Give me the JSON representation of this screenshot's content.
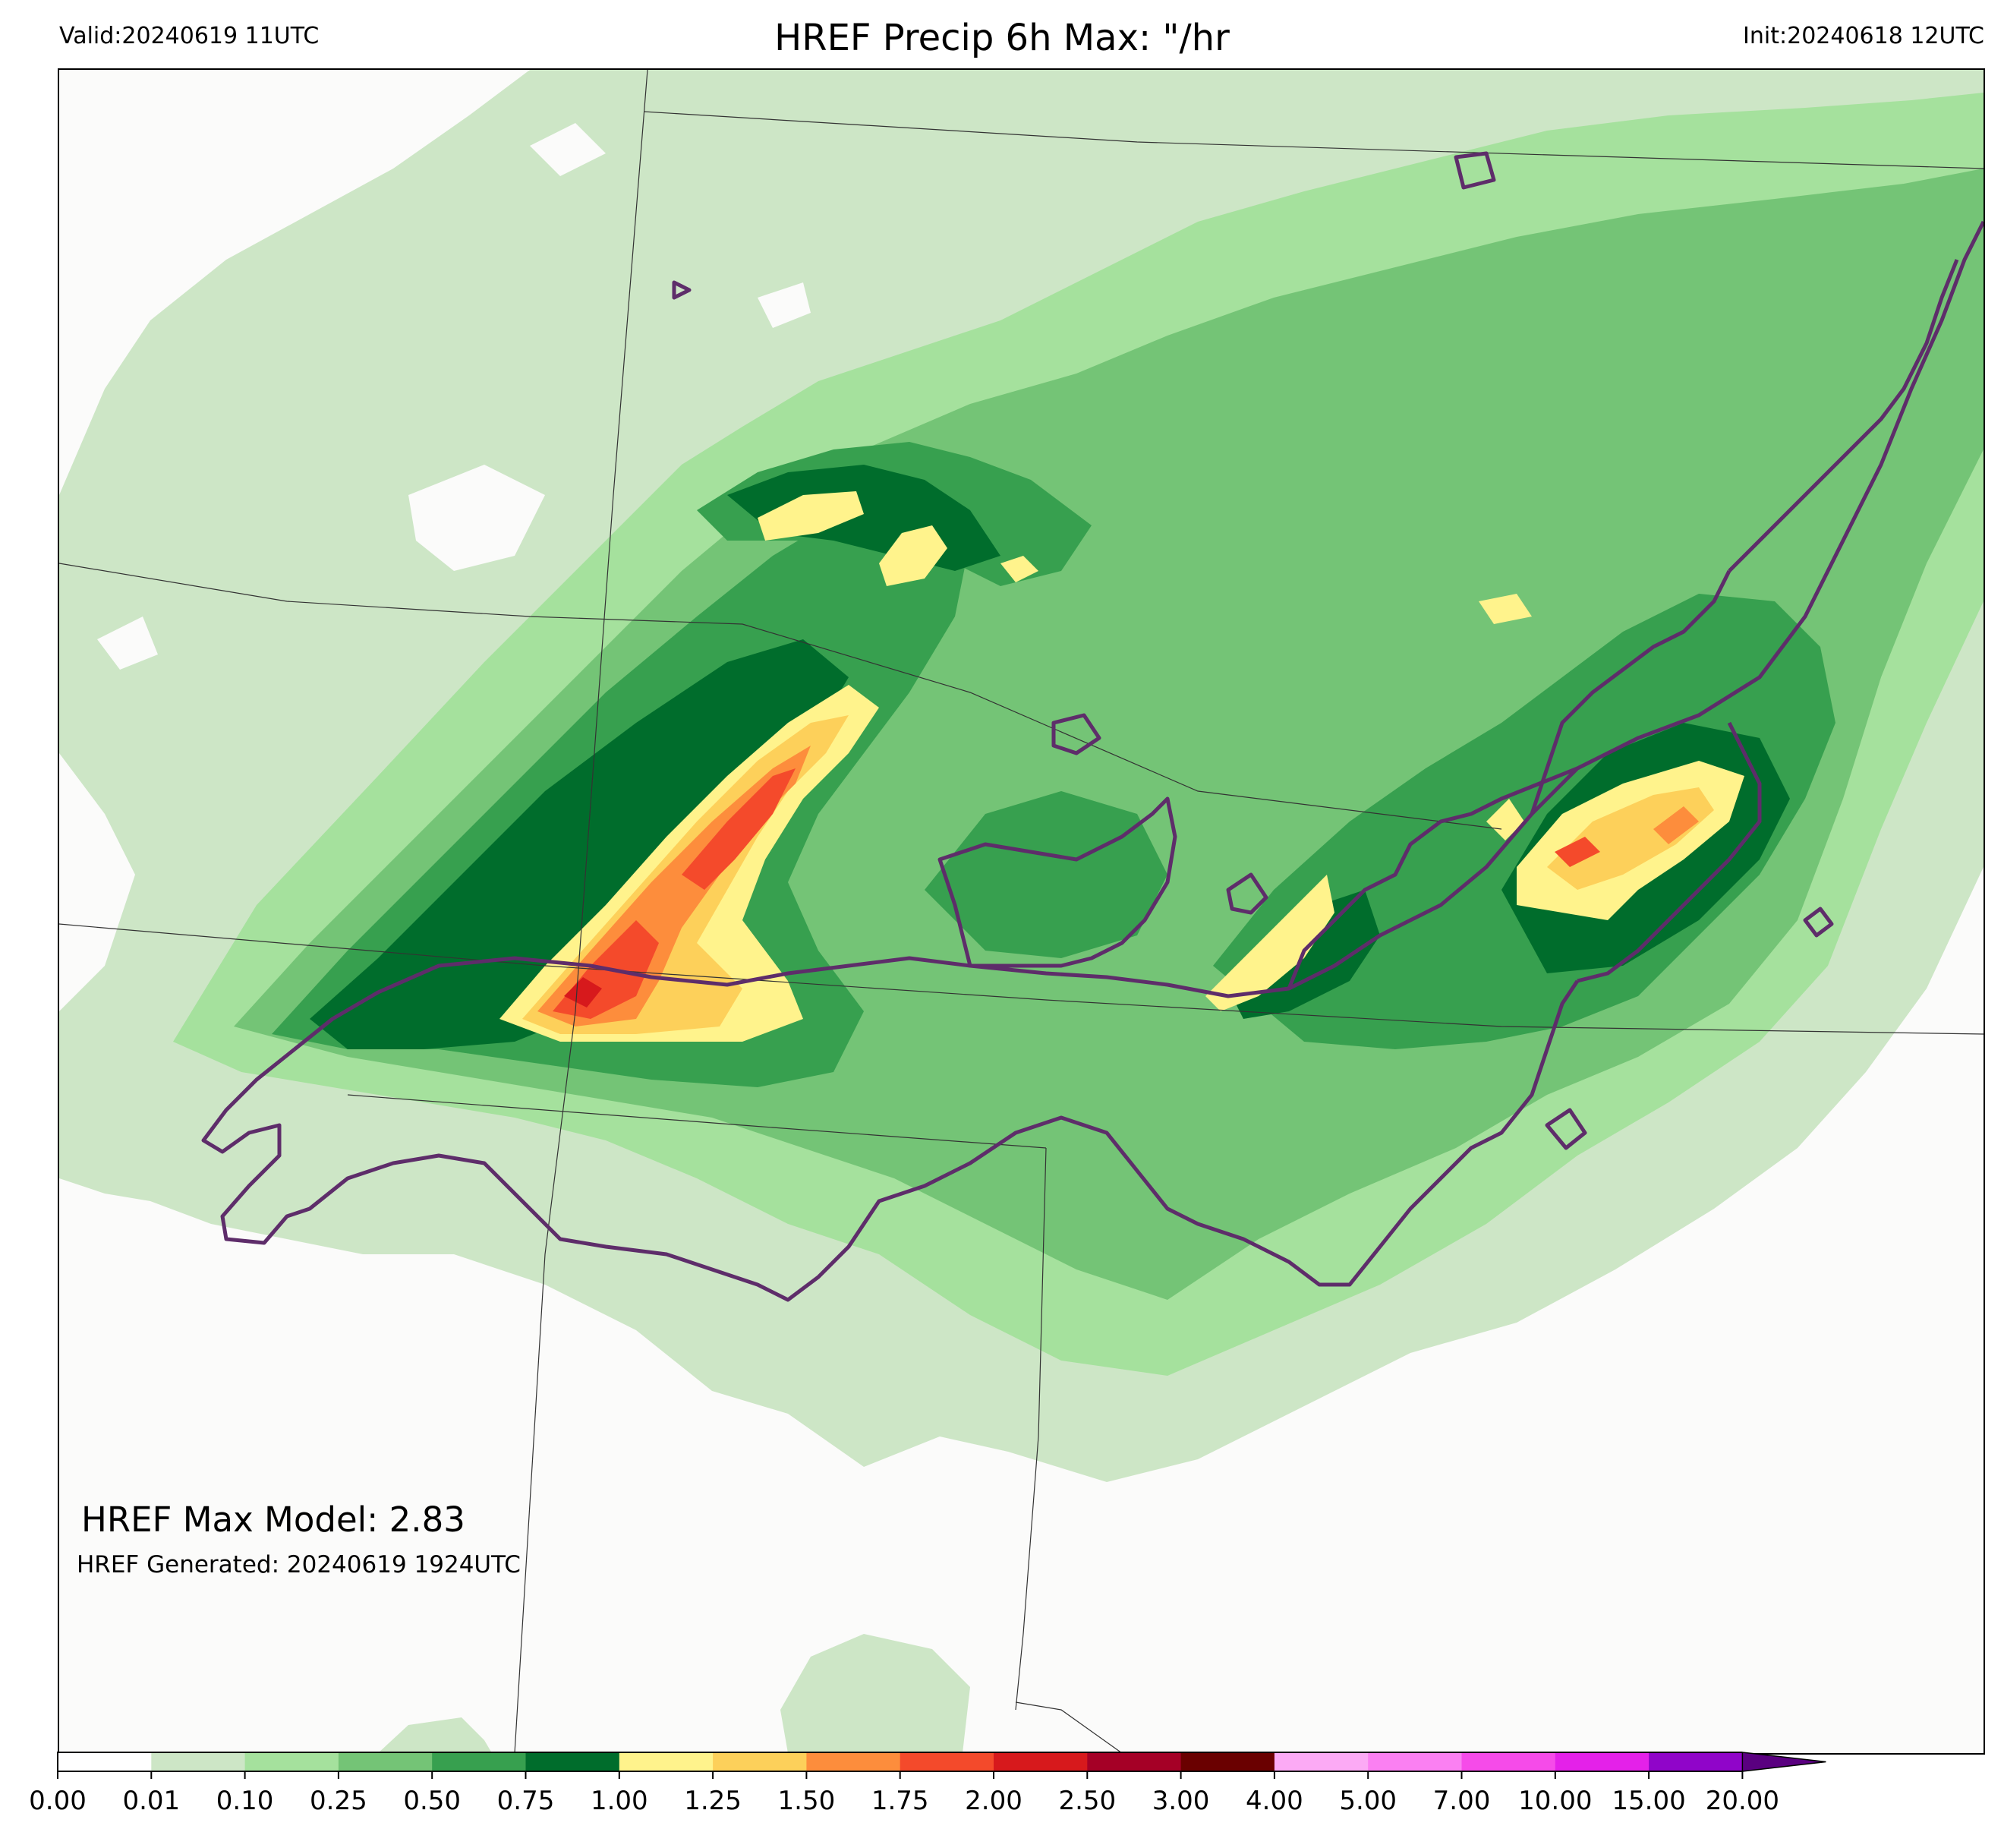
{
  "header": {
    "valid": "Valid:20240619 11UTC",
    "title": "HREF Precip 6h Max: \"/hr",
    "init": "Init:20240618 12UTC"
  },
  "annotations": {
    "max_model": "HREF Max Model: 2.83",
    "generated": "HREF Generated: 20240619 1924UTC"
  },
  "colorbar": {
    "ticks": [
      "0.00",
      "0.01",
      "0.10",
      "0.25",
      "0.50",
      "0.75",
      "1.00",
      "1.25",
      "1.50",
      "1.75",
      "2.00",
      "2.50",
      "3.00",
      "4.00",
      "5.00",
      "7.00",
      "10.00",
      "15.00",
      "20.00"
    ],
    "colors": [
      "#ffffff",
      "#cde6c6",
      "#a5e19d",
      "#74c476",
      "#37a04f",
      "#006d2c",
      "#fff38c",
      "#fdd05a",
      "#fd8d3c",
      "#f44a2b",
      "#d7191c",
      "#a50026",
      "#6a0000",
      "#fcaaf5",
      "#fb80f2",
      "#f64be9",
      "#e421e9",
      "#9005c9"
    ],
    "extend_color": "#5a0080"
  },
  "map": {
    "precip_colors": {
      "trace": "#cde6c6",
      "light": "#a5e19d",
      "moderate": "#74c476",
      "heavy": "#37a04f",
      "very_heavy": "#006d2c",
      "one_inch": "#fff38c",
      "one_quarter": "#fdd05a",
      "one_half": "#fd8d3c",
      "one_three_quarter": "#f44a2b",
      "two": "#d7191c"
    },
    "contour_color": "#5e2d6a",
    "border_color": "#333333",
    "background": "#fbfbfa"
  }
}
